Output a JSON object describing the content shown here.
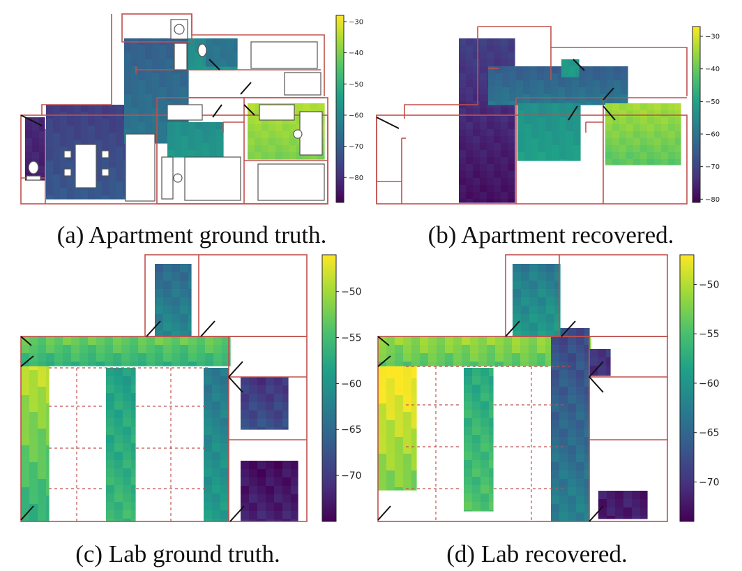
{
  "colors": {
    "wall": "#c0504d",
    "colormap": [
      "#440154",
      "#46327e",
      "#365c8d",
      "#277f8e",
      "#1fa187",
      "#4ac16d",
      "#a0da39",
      "#fde725"
    ]
  },
  "panels": [
    {
      "id": "a",
      "caption": "(a) Apartment ground truth.",
      "colorbar": {
        "min": -88,
        "max": -28,
        "ticks": [
          -30,
          -40,
          -50,
          -60,
          -70,
          -80
        ]
      }
    },
    {
      "id": "b",
      "caption": "(b) Apartment recovered.",
      "colorbar": {
        "min": -81,
        "max": -27,
        "ticks": [
          -30,
          -40,
          -50,
          -60,
          -70,
          -80
        ]
      }
    },
    {
      "id": "c",
      "caption": "(c) Lab ground truth.",
      "colorbar": {
        "min": -75,
        "max": -46,
        "ticks": [
          -50,
          -55,
          -60,
          -65,
          -70
        ]
      }
    },
    {
      "id": "d",
      "caption": "(d) Lab recovered.",
      "colorbar": {
        "min": -74,
        "max": -47,
        "ticks": [
          -50,
          -55,
          -60,
          -65,
          -70
        ]
      }
    }
  ],
  "chart_data": [
    {
      "type": "heatmap",
      "title": "",
      "colorbar_ticks": [
        -30,
        -40,
        -50,
        -60,
        -70,
        -80
      ],
      "regions": [
        {
          "area": "left bathroom",
          "value": -82
        },
        {
          "area": "hallway / living room",
          "value": -74
        },
        {
          "area": "central corridor",
          "value": -67
        },
        {
          "area": "kitchen area",
          "value": -58
        },
        {
          "area": "middle bedroom",
          "value": -57
        },
        {
          "area": "right bedroom",
          "value": -38
        },
        {
          "area": "top bathroom",
          "value": -65
        }
      ]
    },
    {
      "type": "heatmap",
      "title": "",
      "colorbar_ticks": [
        -30,
        -40,
        -50,
        -60,
        -70,
        -80
      ],
      "regions": [
        {
          "area": "left column",
          "value": -75
        },
        {
          "area": "central corridor",
          "value": -62
        },
        {
          "area": "middle bedroom",
          "value": -52
        },
        {
          "area": "right bedroom",
          "value": -38
        },
        {
          "area": "top bathroom",
          "value": -52
        }
      ]
    },
    {
      "type": "heatmap",
      "title": "",
      "colorbar_ticks": [
        -50,
        -55,
        -60,
        -65,
        -70
      ],
      "regions": [
        {
          "area": "left aisle",
          "value": -52
        },
        {
          "area": "top corridor",
          "value": -55
        },
        {
          "area": "center column",
          "value": -57
        },
        {
          "area": "right column",
          "value": -61
        },
        {
          "area": "top room",
          "value": -63
        },
        {
          "area": "right small room",
          "value": -69
        },
        {
          "area": "bottom right room",
          "value": -73
        }
      ]
    },
    {
      "type": "heatmap",
      "title": "",
      "colorbar_ticks": [
        -50,
        -55,
        -60,
        -65,
        -70
      ],
      "regions": [
        {
          "area": "left aisle",
          "value": -49
        },
        {
          "area": "top corridor",
          "value": -53
        },
        {
          "area": "center column",
          "value": -56
        },
        {
          "area": "right column",
          "value": -65
        },
        {
          "area": "top room",
          "value": -61
        },
        {
          "area": "right small room",
          "value": -70
        },
        {
          "area": "bottom right room",
          "value": -72
        }
      ]
    }
  ]
}
